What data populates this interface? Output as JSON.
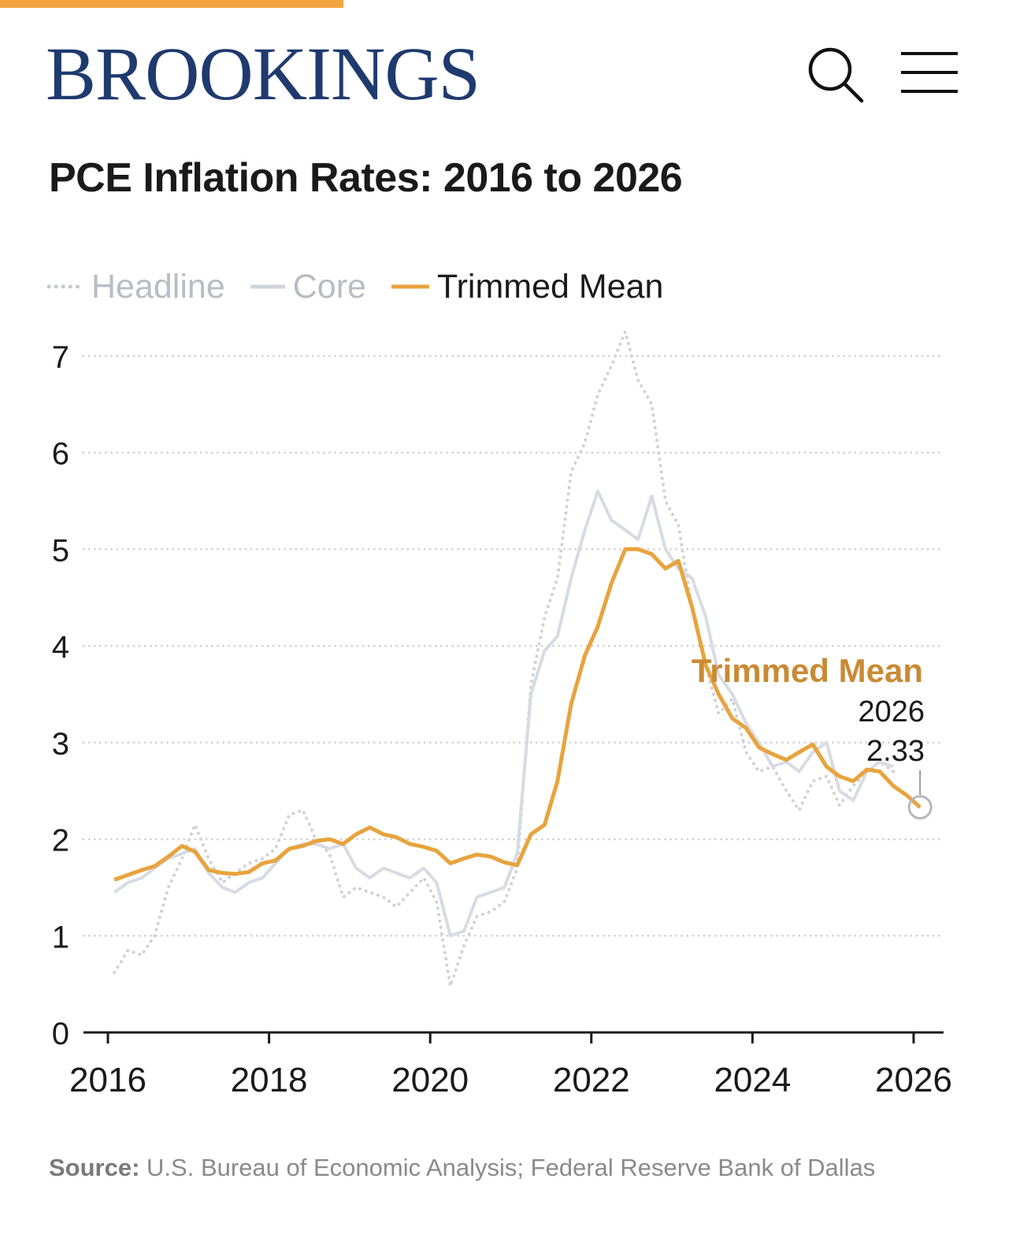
{
  "header": {
    "logo_text": "BROOKINGS",
    "accent_color": "#F2A541",
    "brand_color": "#1F3A6E",
    "search_icon": "search-icon",
    "menu_icon": "hamburger-menu-icon"
  },
  "chart_title": "PCE Inflation Rates: 2016 to 2026",
  "legend": {
    "headline": "Headline",
    "core": "Core",
    "trimmed_mean": "Trimmed Mean"
  },
  "annotation": {
    "series": "Trimmed Mean",
    "year": "2026",
    "value": "2.33"
  },
  "source": {
    "label": "Source:",
    "text": "U.S. Bureau of Economic Analysis; Federal Reserve Bank of Dallas"
  },
  "chart_data": {
    "type": "line",
    "xlim": [
      2016,
      2026
    ],
    "ylim": [
      0,
      7
    ],
    "x_ticks": [
      "2016",
      "2018",
      "2020",
      "2022",
      "2024",
      "2026"
    ],
    "y_ticks": [
      "0",
      "1",
      "2",
      "3",
      "4",
      "5",
      "6",
      "7"
    ],
    "grid": "horizontal dotted",
    "legend_position": "top-left",
    "series": [
      {
        "name": "Headline",
        "color": "#cfd1d6",
        "style": "dotted",
        "x": [
          2016.08,
          2016.25,
          2016.42,
          2016.58,
          2016.75,
          2016.92,
          2017.08,
          2017.25,
          2017.42,
          2017.58,
          2017.75,
          2017.92,
          2018.08,
          2018.25,
          2018.42,
          2018.58,
          2018.75,
          2018.92,
          2019.08,
          2019.25,
          2019.42,
          2019.58,
          2019.75,
          2019.92,
          2020.08,
          2020.25,
          2020.42,
          2020.58,
          2020.75,
          2020.92,
          2021.08,
          2021.25,
          2021.42,
          2021.58,
          2021.75,
          2021.92,
          2022.08,
          2022.25,
          2022.42,
          2022.58,
          2022.75,
          2022.92,
          2023.08,
          2023.25,
          2023.42,
          2023.58,
          2023.75,
          2023.92,
          2024.08,
          2024.25,
          2024.42,
          2024.58,
          2024.75,
          2024.92,
          2025.08,
          2025.25,
          2025.42,
          2025.58,
          2025.75
        ],
        "values": [
          0.62,
          0.85,
          0.8,
          1.0,
          1.5,
          1.8,
          2.15,
          1.8,
          1.55,
          1.65,
          1.75,
          1.8,
          1.9,
          2.25,
          2.3,
          2.0,
          1.85,
          1.4,
          1.5,
          1.45,
          1.4,
          1.3,
          1.45,
          1.6,
          1.35,
          0.48,
          0.9,
          1.2,
          1.25,
          1.35,
          1.7,
          3.6,
          4.3,
          4.7,
          5.8,
          6.1,
          6.6,
          6.9,
          7.25,
          6.75,
          6.5,
          5.5,
          5.25,
          4.4,
          3.8,
          3.3,
          3.45,
          2.9,
          2.7,
          2.75,
          2.5,
          2.3,
          2.6,
          2.65,
          2.35,
          2.55,
          2.7,
          2.8,
          2.7
        ]
      },
      {
        "name": "Core",
        "color": "#d7dbe2",
        "style": "solid",
        "x": [
          2016.08,
          2016.25,
          2016.42,
          2016.58,
          2016.75,
          2016.92,
          2017.08,
          2017.25,
          2017.42,
          2017.58,
          2017.75,
          2017.92,
          2018.08,
          2018.25,
          2018.42,
          2018.58,
          2018.75,
          2018.92,
          2019.08,
          2019.25,
          2019.42,
          2019.58,
          2019.75,
          2019.92,
          2020.08,
          2020.25,
          2020.42,
          2020.58,
          2020.75,
          2020.92,
          2021.08,
          2021.25,
          2021.42,
          2021.58,
          2021.75,
          2021.92,
          2022.08,
          2022.25,
          2022.42,
          2022.58,
          2022.75,
          2022.92,
          2023.08,
          2023.25,
          2023.42,
          2023.58,
          2023.75,
          2023.92,
          2024.08,
          2024.25,
          2024.42,
          2024.58,
          2024.75,
          2024.92,
          2025.08,
          2025.25,
          2025.42,
          2025.58,
          2025.75
        ],
        "values": [
          1.45,
          1.55,
          1.6,
          1.7,
          1.8,
          1.85,
          1.9,
          1.65,
          1.5,
          1.45,
          1.55,
          1.6,
          1.75,
          1.9,
          1.95,
          1.95,
          1.9,
          1.95,
          1.7,
          1.6,
          1.7,
          1.65,
          1.6,
          1.7,
          1.55,
          1.0,
          1.05,
          1.4,
          1.45,
          1.5,
          1.85,
          3.5,
          3.95,
          4.1,
          4.7,
          5.2,
          5.6,
          5.3,
          5.2,
          5.1,
          5.55,
          5.0,
          4.8,
          4.7,
          4.3,
          3.7,
          3.5,
          3.2,
          3.0,
          2.75,
          2.8,
          2.7,
          2.9,
          3.0,
          2.5,
          2.4,
          2.7,
          2.8,
          2.75
        ]
      },
      {
        "name": "Trimmed Mean",
        "color": "#E8A33D",
        "style": "solid",
        "x": [
          2016.08,
          2016.25,
          2016.42,
          2016.58,
          2016.75,
          2016.92,
          2017.08,
          2017.25,
          2017.42,
          2017.58,
          2017.75,
          2017.92,
          2018.08,
          2018.25,
          2018.42,
          2018.58,
          2018.75,
          2018.92,
          2019.08,
          2019.25,
          2019.42,
          2019.58,
          2019.75,
          2019.92,
          2020.08,
          2020.25,
          2020.42,
          2020.58,
          2020.75,
          2020.92,
          2021.08,
          2021.25,
          2021.42,
          2021.58,
          2021.75,
          2021.92,
          2022.08,
          2022.25,
          2022.42,
          2022.58,
          2022.75,
          2022.92,
          2023.08,
          2023.25,
          2023.42,
          2023.58,
          2023.75,
          2023.92,
          2024.08,
          2024.25,
          2024.42,
          2024.58,
          2024.75,
          2024.92,
          2025.08,
          2025.25,
          2025.42,
          2025.58,
          2025.75,
          2025.92,
          2026.08
        ],
        "values": [
          1.58,
          1.63,
          1.68,
          1.72,
          1.82,
          1.93,
          1.87,
          1.68,
          1.65,
          1.64,
          1.66,
          1.75,
          1.78,
          1.9,
          1.93,
          1.98,
          2.0,
          1.95,
          2.05,
          2.12,
          2.05,
          2.02,
          1.95,
          1.92,
          1.88,
          1.75,
          1.8,
          1.84,
          1.82,
          1.76,
          1.73,
          2.05,
          2.15,
          2.6,
          3.4,
          3.9,
          4.2,
          4.65,
          5.0,
          5.0,
          4.95,
          4.8,
          4.88,
          4.4,
          3.8,
          3.5,
          3.25,
          3.15,
          2.95,
          2.88,
          2.82,
          2.9,
          2.98,
          2.75,
          2.65,
          2.6,
          2.72,
          2.7,
          2.55,
          2.45,
          2.33
        ]
      }
    ]
  }
}
